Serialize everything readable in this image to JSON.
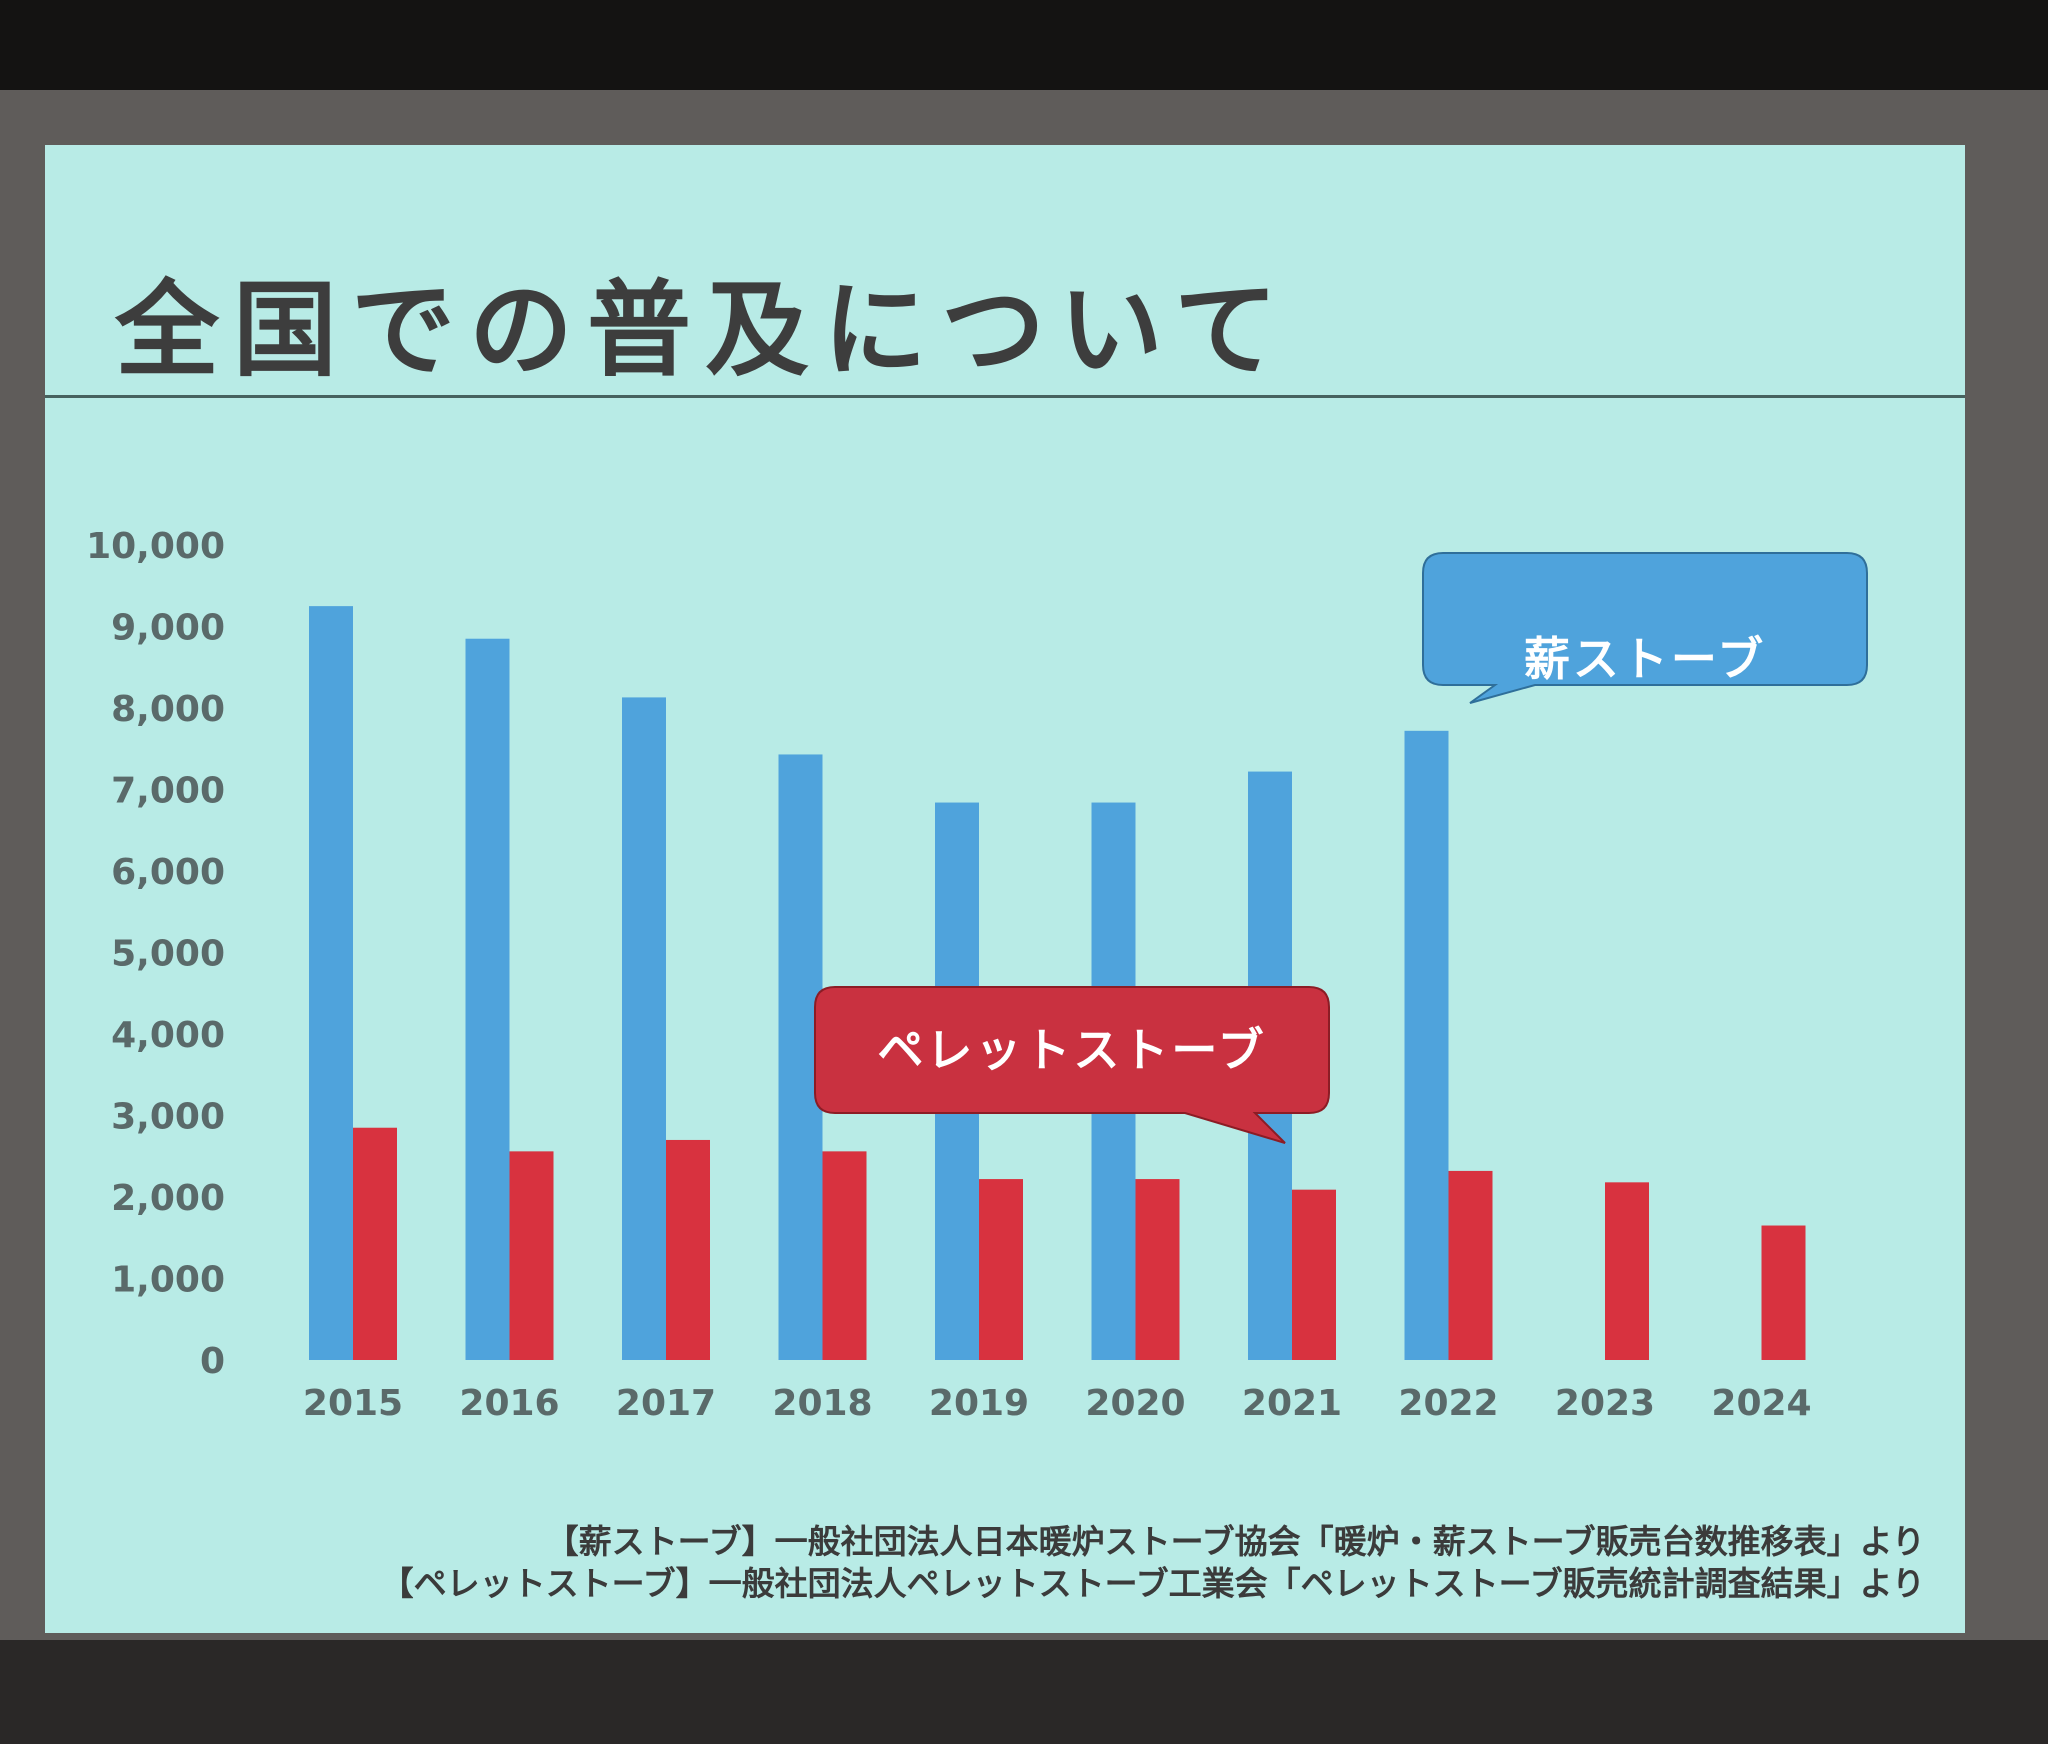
{
  "slide": {
    "title": "全国での普及について",
    "sources": [
      "【薪ストーブ】一般社団法人日本暖炉ストーブ協会「暖炉・薪ストーブ販売台数推移表」より",
      "【ペレットストーブ】一般社団法人ペレットストーブ工業会「ペレットストーブ販売統計調査結果」より"
    ]
  },
  "chart_data": {
    "type": "bar",
    "categories": [
      "2015",
      "2016",
      "2017",
      "2018",
      "2019",
      "2020",
      "2021",
      "2022",
      "2023",
      "2024"
    ],
    "series": [
      {
        "name": "薪ストーブ",
        "color": "#4fa3dc",
        "values": [
          9250,
          8850,
          8130,
          7430,
          6840,
          6840,
          7220,
          7720,
          null,
          null
        ]
      },
      {
        "name": "ペレットストーブ",
        "color": "#d8323f",
        "values": [
          2850,
          2560,
          2700,
          2560,
          2220,
          2220,
          2090,
          2320,
          2180,
          1650
        ]
      }
    ],
    "ylim": [
      0,
      10000
    ],
    "yticks": [
      "10,000",
      "9,000",
      "8,000",
      "7,000",
      "6,000",
      "5,000",
      "4,000",
      "3,000",
      "2,000",
      "1,000",
      "0"
    ],
    "ytick_values": [
      10000,
      9000,
      8000,
      7000,
      6000,
      5000,
      4000,
      3000,
      2000,
      1000,
      0
    ],
    "legend": "callouts",
    "grid": false
  }
}
